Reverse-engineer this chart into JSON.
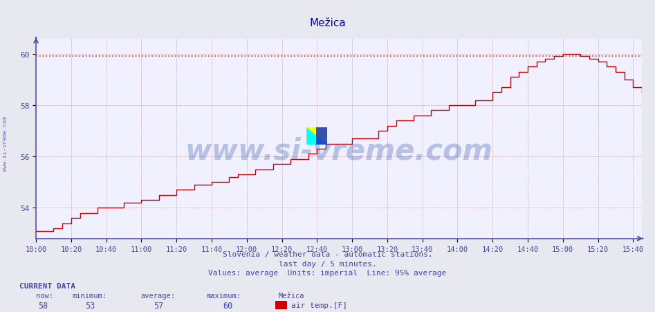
{
  "title": "Mežica",
  "title_color": "#0000cc",
  "bg_color": "#e8e8f0",
  "plot_bg_color": "#f0f0ff",
  "line_color": "#cc0000",
  "avg_line_color": "#dd4444",
  "avg_line_value": 59.9,
  "x_ticks": [
    "10:00",
    "10:20",
    "10:40",
    "11:00",
    "11:20",
    "11:40",
    "12:00",
    "12:20",
    "12:40",
    "13:00",
    "13:20",
    "13:40",
    "14:00",
    "14:20",
    "14:40",
    "15:00",
    "15:20",
    "15:40"
  ],
  "y_min": 52.8,
  "y_max": 60.6,
  "y_ticks": [
    54,
    56,
    58,
    60
  ],
  "tick_color": "#4444aa",
  "subtitle1": "Slovenia / weather data - automatic stations.",
  "subtitle2": "last day / 5 minutes.",
  "subtitle3": "Values: average  Units: imperial  Line: 95% average",
  "subtitle_color": "#4444aa",
  "watermark": "www.si-vreme.com",
  "watermark_color": "#3355aa",
  "watermark_alpha": 0.3,
  "side_text": "www.si-vreme.com",
  "side_text_color": "#7777aa",
  "current_data_label": "CURRENT DATA",
  "now_val": "58",
  "min_val": "53",
  "avg_val": "57",
  "max_val": "60",
  "station": "Mežica",
  "legend_label": "air temp.[F]",
  "legend_color": "#cc0000",
  "data_x_minutes": [
    0,
    5,
    10,
    15,
    20,
    25,
    30,
    35,
    40,
    45,
    50,
    55,
    60,
    65,
    70,
    75,
    80,
    85,
    90,
    95,
    100,
    105,
    110,
    115,
    120,
    125,
    130,
    135,
    140,
    145,
    150,
    155,
    160,
    165,
    170,
    175,
    180,
    185,
    190,
    195,
    200,
    205,
    210,
    215,
    220,
    225,
    230,
    235,
    240,
    245,
    250,
    255,
    260,
    265,
    270,
    275,
    280,
    285,
    290,
    295,
    300,
    305,
    310,
    315,
    320,
    325,
    330,
    335,
    340,
    345
  ],
  "data_y": [
    53.1,
    53.1,
    53.2,
    53.4,
    53.6,
    53.8,
    53.8,
    54.0,
    54.0,
    54.0,
    54.2,
    54.2,
    54.3,
    54.3,
    54.5,
    54.5,
    54.7,
    54.7,
    54.9,
    54.9,
    55.0,
    55.0,
    55.2,
    55.3,
    55.3,
    55.5,
    55.5,
    55.7,
    55.7,
    55.9,
    55.9,
    56.1,
    56.3,
    56.5,
    56.5,
    56.5,
    56.7,
    56.7,
    56.7,
    57.0,
    57.2,
    57.4,
    57.4,
    57.6,
    57.6,
    57.8,
    57.8,
    58.0,
    58.0,
    58.0,
    58.2,
    58.2,
    58.5,
    58.7,
    59.1,
    59.3,
    59.5,
    59.7,
    59.8,
    59.9,
    60.0,
    60.0,
    59.9,
    59.8,
    59.7,
    59.5,
    59.3,
    59.0,
    58.7,
    58.5
  ]
}
